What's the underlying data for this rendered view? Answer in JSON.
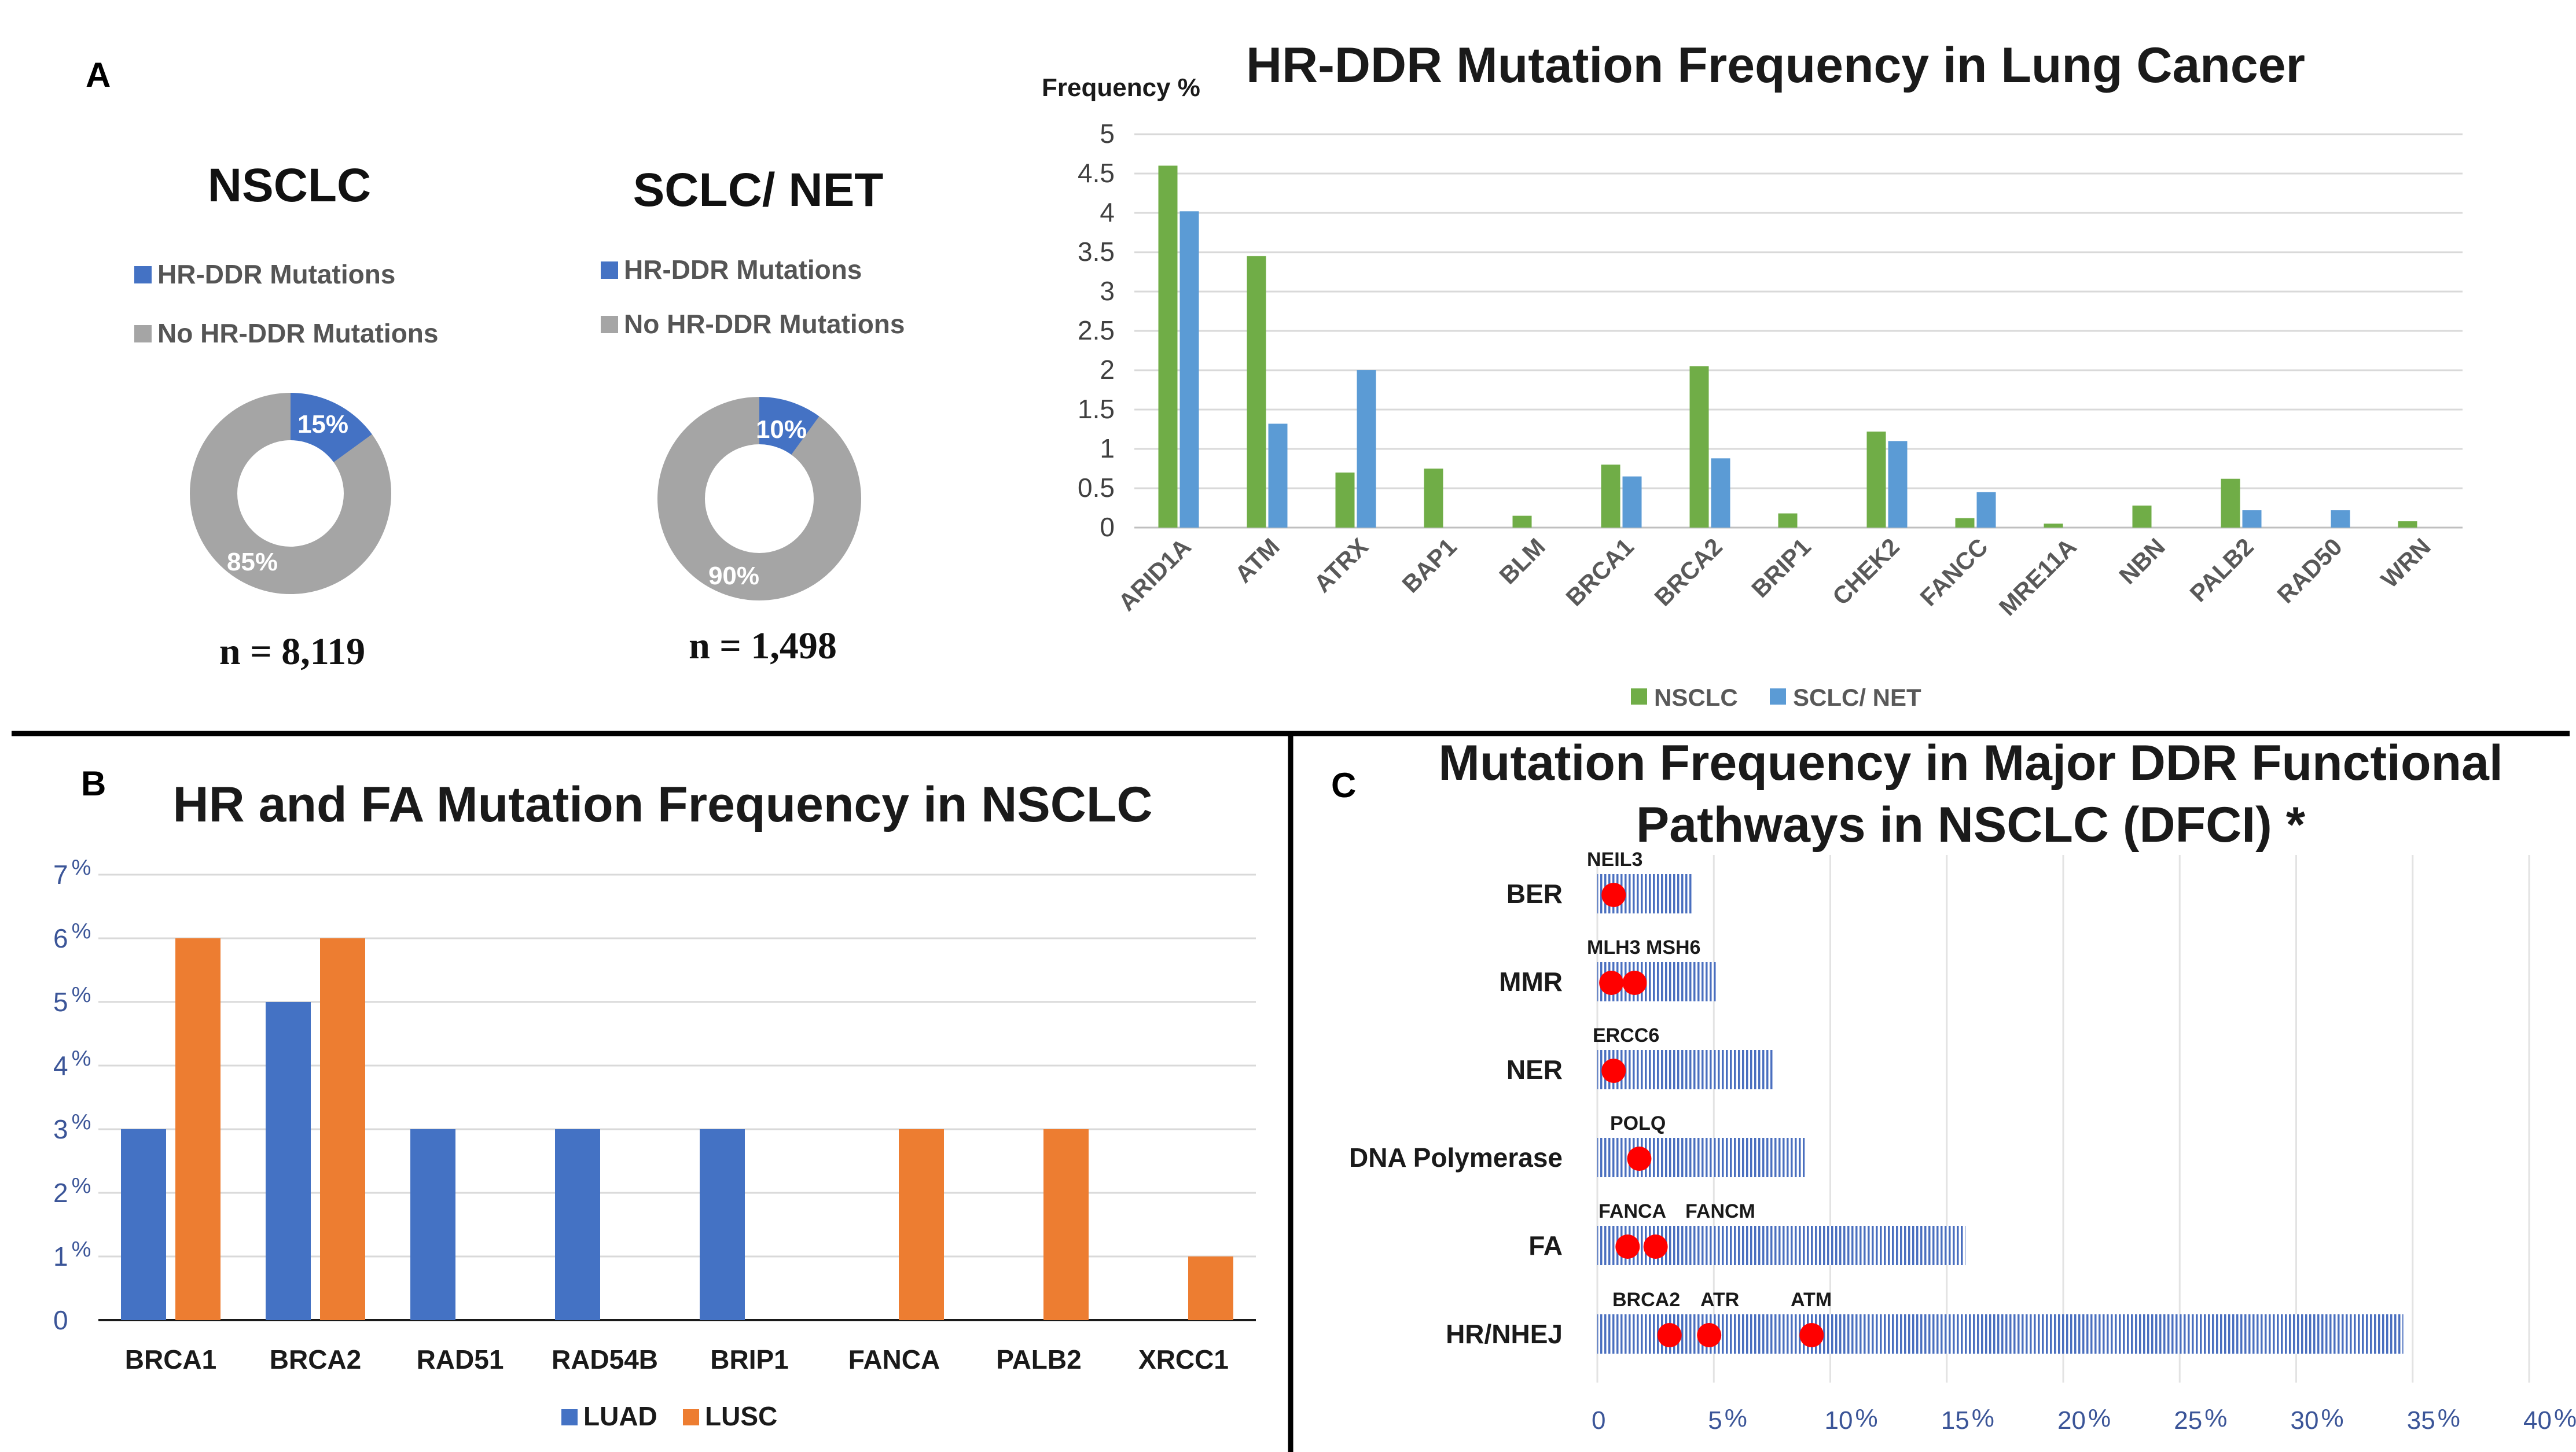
{
  "panel_letters": {
    "a": "A",
    "b": "B",
    "c": "C"
  },
  "colors": {
    "hr_blue": "#4472c4",
    "no_hr_gray": "#a5a5a5",
    "nsclc_green": "#70ad47",
    "sclc_blue": "#5b9bd5",
    "luad_blue": "#4472c4",
    "lusc_orange": "#ed7d31",
    "dot_red": "#ff0000"
  },
  "donuts": [
    {
      "title": "NSCLC",
      "legend": [
        "HR-DDR Mutations",
        "No HR-DDR Mutations"
      ],
      "slice_pct": 15,
      "hr_label": "15%",
      "rest_label": "85%",
      "n_label": "n = 8,119"
    },
    {
      "title": "SCLC/ NET",
      "legend": [
        "HR-DDR Mutations",
        "No HR-DDR Mutations"
      ],
      "slice_pct": 10,
      "hr_label": "10%",
      "rest_label": "90%",
      "n_label": "n = 1,498"
    }
  ],
  "chart_data": [
    {
      "type": "bar",
      "title": "HR-DDR Mutation Frequency in Lung Cancer",
      "ylabel": "Frequency %",
      "ylim": [
        0,
        5
      ],
      "yticks": [
        "0",
        "0.5",
        "1",
        "1.5",
        "2",
        "2.5",
        "3",
        "3.5",
        "4",
        "4.5",
        "5"
      ],
      "categories": [
        "ARID1A",
        "ATM",
        "ATRX",
        "BAP1",
        "BLM",
        "BRCA1",
        "BRCA2",
        "BRIP1",
        "CHEK2",
        "FANCC",
        "MRE11A",
        "NBN",
        "PALB2",
        "RAD50",
        "WRN"
      ],
      "series": [
        {
          "name": "NSCLC",
          "values": [
            4.6,
            3.45,
            0.7,
            0.75,
            0.15,
            0.8,
            2.05,
            0.18,
            1.22,
            0.12,
            0.05,
            0.28,
            0.62,
            0,
            0.08
          ]
        },
        {
          "name": "SCLC/ NET",
          "values": [
            4.02,
            1.32,
            2.0,
            0,
            0,
            0.65,
            0.88,
            0,
            1.1,
            0.45,
            0,
            0,
            0.22,
            0.22,
            0
          ]
        }
      ],
      "legend": [
        "NSCLC",
        "SCLC/ NET"
      ]
    },
    {
      "type": "bar",
      "title": "HR and FA Mutation Frequency in NSCLC",
      "ylim": [
        0,
        7
      ],
      "yticks": [
        "0",
        "1",
        "2",
        "3",
        "4",
        "5",
        "6",
        "7"
      ],
      "tick_suffix": "%",
      "categories": [
        "BRCA1",
        "BRCA2",
        "RAD51",
        "RAD54B",
        "BRIP1",
        "FANCA",
        "PALB2",
        "XRCC1"
      ],
      "series": [
        {
          "name": "LUAD",
          "values": [
            3,
            5,
            3,
            3,
            3,
            0,
            0,
            0
          ]
        },
        {
          "name": "LUSC",
          "values": [
            6,
            6,
            0,
            0,
            0,
            3,
            3,
            1
          ]
        }
      ],
      "legend": [
        "LUAD",
        "LUSC"
      ]
    },
    {
      "type": "bar",
      "orientation": "horizontal",
      "title_lines": [
        "Mutation Frequency in Major DDR Functional",
        "Pathways in NSCLC (DFCI) *"
      ],
      "xlim": [
        0,
        40
      ],
      "xticks": [
        {
          "num": "0",
          "suffix": ""
        },
        {
          "num": "5",
          "suffix": "%"
        },
        {
          "num": "10",
          "suffix": "%"
        },
        {
          "num": "15",
          "suffix": "%"
        },
        {
          "num": "20",
          "suffix": "%"
        },
        {
          "num": "25",
          "suffix": "%"
        },
        {
          "num": "30",
          "suffix": "%"
        },
        {
          "num": "35",
          "suffix": "%"
        },
        {
          "num": "40",
          "suffix": "%"
        }
      ],
      "categories": [
        "BER",
        "MMR",
        "NER",
        "DNA Polymerase",
        "FA",
        "HR/NHEJ"
      ],
      "values": [
        4.1,
        5.1,
        7.6,
        8.9,
        15.8,
        34.6
      ],
      "annotations": [
        {
          "category": "BER",
          "genes": [
            "NEIL3"
          ],
          "dots": [
            0.7
          ]
        },
        {
          "category": "MMR",
          "genes": [
            "MLH3 MSH6"
          ],
          "dots": [
            0.6,
            1.6
          ]
        },
        {
          "category": "NER",
          "genes": [
            "ERCC6"
          ],
          "dots": [
            0.7
          ]
        },
        {
          "category": "DNA Polymerase",
          "genes": [
            "POLQ"
          ],
          "dots": [
            1.8
          ]
        },
        {
          "category": "FA",
          "genes": [
            "FANCA",
            "FANCM"
          ],
          "dots": [
            1.3,
            2.5
          ]
        },
        {
          "category": "HR/NHEJ",
          "genes": [
            "BRCA2",
            "ATR",
            "ATM"
          ],
          "dots": [
            3.1,
            4.8,
            9.2
          ]
        }
      ]
    }
  ]
}
